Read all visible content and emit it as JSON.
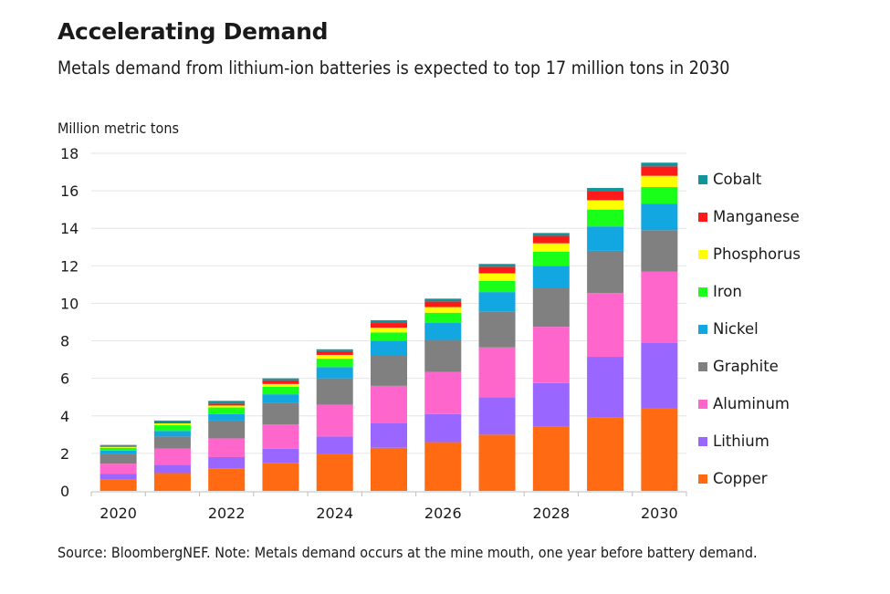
{
  "chart_data": {
    "type": "bar",
    "stacked": true,
    "title": "Accelerating Demand",
    "subtitle": "Metals demand from lithium-ion batteries is expected to top 17 million tons in 2030",
    "ylabel": "Million metric tons",
    "xlabel": "",
    "source": "Source: BloombergNEF. Note: Metals demand occurs at the mine mouth, one year before battery demand.",
    "ylim": [
      0,
      18
    ],
    "yticks": [
      0,
      2,
      4,
      6,
      8,
      10,
      12,
      14,
      16,
      18
    ],
    "categories": [
      "2020",
      "2021",
      "2022",
      "2023",
      "2024",
      "2025",
      "2026",
      "2027",
      "2028",
      "2029",
      "2030"
    ],
    "xtick_labels": [
      "2020",
      "2022",
      "2024",
      "2026",
      "2028",
      "2030"
    ],
    "grid": true,
    "legend_position": "right",
    "series": [
      {
        "name": "Copper",
        "color": "#ff6a13",
        "values": [
          0.6,
          0.95,
          1.2,
          1.5,
          1.95,
          2.3,
          2.6,
          3.0,
          3.45,
          3.9,
          4.4
        ]
      },
      {
        "name": "Lithium",
        "color": "#9966ff",
        "values": [
          0.3,
          0.45,
          0.6,
          0.75,
          0.95,
          1.3,
          1.5,
          2.0,
          2.3,
          3.25,
          3.5
        ]
      },
      {
        "name": "Aluminum",
        "color": "#ff66cc",
        "values": [
          0.55,
          0.85,
          1.0,
          1.3,
          1.7,
          2.0,
          2.25,
          2.65,
          3.0,
          3.4,
          3.8
        ]
      },
      {
        "name": "Graphite",
        "color": "#808080",
        "values": [
          0.5,
          0.65,
          0.95,
          1.15,
          1.4,
          1.6,
          1.7,
          1.9,
          2.05,
          2.25,
          2.2
        ]
      },
      {
        "name": "Nickel",
        "color": "#12a7e0",
        "values": [
          0.2,
          0.3,
          0.35,
          0.45,
          0.6,
          0.8,
          0.9,
          1.05,
          1.2,
          1.3,
          1.4
        ]
      },
      {
        "name": "Iron",
        "color": "#19ff19",
        "values": [
          0.15,
          0.3,
          0.35,
          0.4,
          0.45,
          0.45,
          0.55,
          0.6,
          0.75,
          0.9,
          0.9
        ]
      },
      {
        "name": "Phosphorus",
        "color": "#ffff00",
        "values": [
          0.05,
          0.1,
          0.1,
          0.15,
          0.2,
          0.25,
          0.3,
          0.4,
          0.45,
          0.5,
          0.6
        ]
      },
      {
        "name": "Manganese",
        "color": "#ff1a1a",
        "values": [
          0.05,
          0.05,
          0.1,
          0.2,
          0.2,
          0.25,
          0.3,
          0.35,
          0.4,
          0.5,
          0.5
        ]
      },
      {
        "name": "Cobalt",
        "color": "#13949b",
        "values": [
          0.05,
          0.1,
          0.15,
          0.1,
          0.1,
          0.15,
          0.15,
          0.15,
          0.15,
          0.15,
          0.2
        ]
      }
    ]
  },
  "legend": {
    "items": [
      {
        "label": "Cobalt",
        "color": "#13949b"
      },
      {
        "label": "Manganese",
        "color": "#ff1a1a"
      },
      {
        "label": "Phosphorus",
        "color": "#ffff00"
      },
      {
        "label": "Iron",
        "color": "#19ff19"
      },
      {
        "label": "Nickel",
        "color": "#12a7e0"
      },
      {
        "label": "Graphite",
        "color": "#808080"
      },
      {
        "label": "Aluminum",
        "color": "#ff66cc"
      },
      {
        "label": "Lithium",
        "color": "#9966ff"
      },
      {
        "label": "Copper",
        "color": "#ff6a13"
      }
    ]
  }
}
